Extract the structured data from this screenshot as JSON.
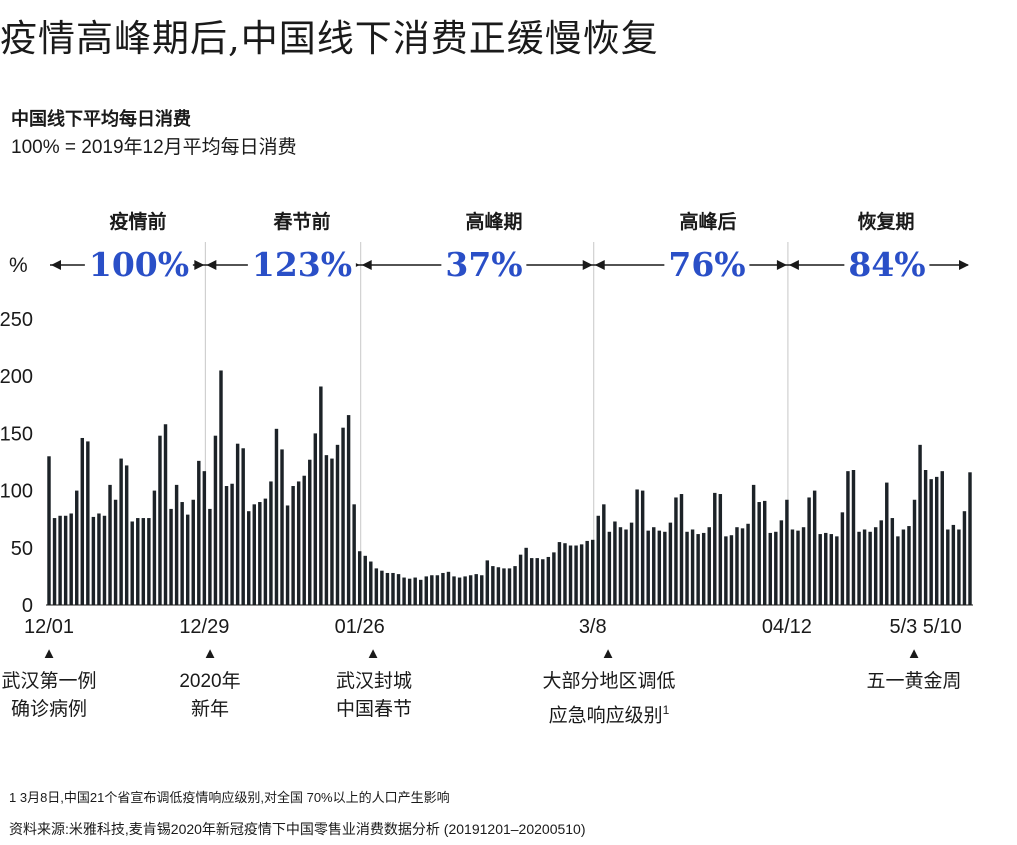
{
  "header": {
    "title": "疫情高峰期后,中国线下消费正缓慢恢复",
    "subtitle": "中国线下平均每日消费",
    "subtitle2": "100% = 2019年12月平均每日消费"
  },
  "phases": {
    "unit": "%",
    "items": [
      {
        "name": "疫情前",
        "pct": "100%"
      },
      {
        "name": "春节前",
        "pct": "123%"
      },
      {
        "name": "高峰期",
        "pct": "37%"
      },
      {
        "name": "高峰后",
        "pct": "76%"
      },
      {
        "name": "恢复期",
        "pct": "84%"
      }
    ]
  },
  "annotations": [
    {
      "line1": "武汉第一例",
      "line2": "确诊病例"
    },
    {
      "line1": "2020年",
      "line2": "新年"
    },
    {
      "line1": "武汉封城",
      "line2": "中国春节"
    },
    {
      "line1": "大部分地区调低",
      "line2": "应急响应级别",
      "sup": "1"
    },
    {
      "line1": "五一黄金周",
      "line2": ""
    }
  ],
  "footer": {
    "footnote": "1 3月8日,中国21个省宣布调低疫情响应级别,对全国 70%以上的人口产生影响",
    "source": "资料来源:米雅科技,麦肯锡2020年新冠疫情下中国零售业消费数据分析 (20191201–20200510)"
  },
  "colors": {
    "bar": "#1c2227",
    "accent": "#2a4fc7",
    "divider": "#c8c8c8"
  },
  "chart_data": {
    "type": "bar",
    "title": "中国线下平均每日消费",
    "ylabel": "%",
    "ylim": [
      0,
      250
    ],
    "yticks": [
      0,
      50,
      100,
      150,
      200,
      250
    ],
    "x_tick_labels": [
      {
        "label": "12/01",
        "index": 0
      },
      {
        "label": "12/29",
        "index": 28
      },
      {
        "label": "01/26",
        "index": 56
      },
      {
        "label": "3/8",
        "index": 98
      },
      {
        "label": "04/12",
        "index": 133
      },
      {
        "label": "5/3",
        "index": 154
      },
      {
        "label": "5/10",
        "index": 161
      }
    ],
    "phase_boundaries": [
      28,
      56,
      98,
      133
    ],
    "values": [
      130,
      76,
      78,
      78,
      80,
      100,
      146,
      143,
      77,
      80,
      78,
      105,
      92,
      128,
      122,
      73,
      76,
      76,
      76,
      100,
      148,
      158,
      84,
      105,
      90,
      79,
      92,
      126,
      117,
      84,
      148,
      205,
      104,
      106,
      141,
      137,
      82,
      88,
      90,
      93,
      108,
      154,
      136,
      87,
      104,
      108,
      113,
      127,
      150,
      191,
      131,
      128,
      140,
      155,
      166,
      88,
      47,
      43,
      38,
      32,
      30,
      28,
      28,
      27,
      24,
      23,
      24,
      22,
      25,
      26,
      26,
      28,
      29,
      25,
      24,
      25,
      26,
      27,
      26,
      39,
      34,
      33,
      32,
      32,
      34,
      44,
      50,
      41,
      41,
      40,
      42,
      46,
      55,
      54,
      52,
      52,
      53,
      56,
      57,
      78,
      88,
      64,
      73,
      68,
      66,
      72,
      101,
      100,
      65,
      68,
      65,
      64,
      72,
      94,
      97,
      64,
      66,
      62,
      63,
      68,
      98,
      97,
      60,
      61,
      68,
      67,
      71,
      105,
      90,
      91,
      63,
      64,
      74,
      92,
      66,
      65,
      68,
      94,
      100,
      62,
      63,
      62,
      60,
      81,
      117,
      118,
      64,
      66,
      64,
      68,
      74,
      107,
      76,
      60,
      66,
      69,
      92,
      140,
      118,
      110,
      112,
      117,
      66,
      70,
      66,
      82,
      116
    ]
  }
}
